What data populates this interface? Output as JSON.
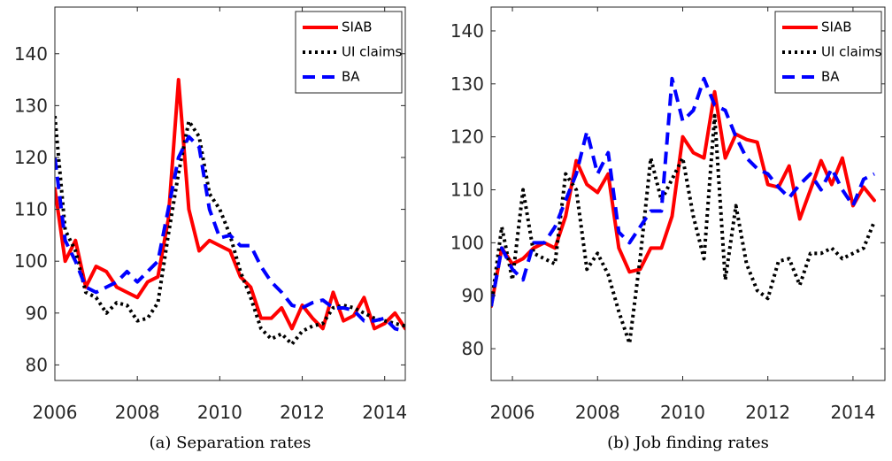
{
  "chart_data": [
    {
      "type": "line",
      "caption": "(a) Separation rates",
      "x": [
        2006,
        2006.25,
        2006.5,
        2006.75,
        2007,
        2007.25,
        2007.5,
        2007.75,
        2008,
        2008.25,
        2008.5,
        2008.75,
        2009,
        2009.25,
        2009.5,
        2009.75,
        2010,
        2010.25,
        2010.5,
        2010.75,
        2011,
        2011.25,
        2011.5,
        2011.75,
        2012,
        2012.25,
        2012.5,
        2012.75,
        2013,
        2013.25,
        2013.5,
        2013.75,
        2014,
        2014.25,
        2014.5
      ],
      "xlim": [
        2006,
        2014.5
      ],
      "xticks": [
        2006,
        2008,
        2010,
        2012,
        2014
      ],
      "ylim": [
        77,
        149
      ],
      "yticks": [
        80,
        90,
        100,
        110,
        120,
        130,
        140
      ],
      "legend": "top-right",
      "series": [
        {
          "name": "SIAB",
          "color": "#ff0000",
          "dash": "solid",
          "values": [
            114,
            100,
            104,
            95,
            99,
            98,
            95,
            94,
            93,
            96,
            97,
            108,
            135,
            110,
            102,
            104,
            103,
            102,
            97,
            95,
            89,
            89,
            91,
            87,
            91.5,
            89,
            87,
            94,
            88.5,
            89.5,
            93,
            87,
            88,
            90,
            87
          ]
        },
        {
          "name": "UI claims",
          "color": "#000000",
          "dash": "dotted",
          "values": [
            128,
            106,
            102,
            94,
            93,
            90,
            92,
            91.5,
            88.5,
            89,
            92,
            105,
            117,
            127,
            124,
            113,
            110,
            105,
            98,
            93,
            87,
            85,
            86,
            84,
            86.5,
            87.5,
            88,
            91,
            91.5,
            91,
            90,
            89,
            88.5,
            88,
            87.5
          ]
        },
        {
          "name": "BA",
          "color": "#0000ff",
          "dash": "dashed",
          "values": [
            120,
            104,
            100,
            95,
            94,
            95,
            96,
            98,
            96,
            98,
            100,
            110,
            120,
            124,
            122,
            110,
            104.5,
            105,
            103,
            103,
            99,
            96,
            94,
            91.5,
            91,
            92,
            92.5,
            91,
            91,
            90.5,
            88.5,
            88.5,
            89,
            87,
            86.5
          ]
        }
      ]
    },
    {
      "type": "line",
      "caption": "(b) Job finding rates",
      "x": [
        2005.5,
        2005.75,
        2006,
        2006.25,
        2006.5,
        2006.75,
        2007,
        2007.25,
        2007.5,
        2007.75,
        2008,
        2008.25,
        2008.5,
        2008.75,
        2009,
        2009.25,
        2009.5,
        2009.75,
        2010,
        2010.25,
        2010.5,
        2010.75,
        2011,
        2011.25,
        2011.5,
        2011.75,
        2012,
        2012.25,
        2012.5,
        2012.75,
        2013,
        2013.25,
        2013.5,
        2013.75,
        2014,
        2014.25,
        2014.5
      ],
      "xlim": [
        2005.5,
        2014.75
      ],
      "xticks": [
        2006,
        2008,
        2010,
        2012,
        2014
      ],
      "ylim": [
        74,
        144.5
      ],
      "yticks": [
        80,
        90,
        100,
        110,
        120,
        130,
        140
      ],
      "legend": "top-right",
      "series": [
        {
          "name": "SIAB",
          "color": "#ff0000",
          "dash": "solid",
          "values": [
            88,
            99,
            96,
            97,
            99,
            100,
            99,
            105,
            115.5,
            111,
            109.5,
            113,
            99,
            94.5,
            95,
            99,
            99,
            105,
            120,
            117,
            116,
            128.5,
            116,
            120.5,
            119.5,
            119,
            111,
            110.5,
            114.5,
            104.5,
            110,
            115.5,
            111,
            116,
            107,
            110.5,
            108
          ]
        },
        {
          "name": "UI claims",
          "color": "#000000",
          "dash": "dotted",
          "values": [
            88,
            103,
            93,
            110,
            98,
            97,
            96,
            113,
            110,
            95,
            98,
            94,
            87,
            81,
            97,
            116,
            108,
            112,
            116,
            105,
            97,
            124,
            93,
            107,
            96,
            91,
            89.5,
            96.5,
            97,
            92,
            98,
            98,
            99,
            97,
            98,
            99,
            104
          ]
        },
        {
          "name": "BA",
          "color": "#0000ff",
          "dash": "dashed",
          "values": [
            88,
            99,
            95,
            93,
            100,
            100,
            103,
            108,
            113,
            121,
            113,
            117,
            102,
            100,
            103,
            106,
            106,
            131,
            123,
            125,
            131,
            126,
            125,
            120,
            116,
            114,
            113,
            110.5,
            108.5,
            111,
            113,
            110,
            114,
            110,
            107,
            112,
            113
          ]
        }
      ]
    }
  ]
}
